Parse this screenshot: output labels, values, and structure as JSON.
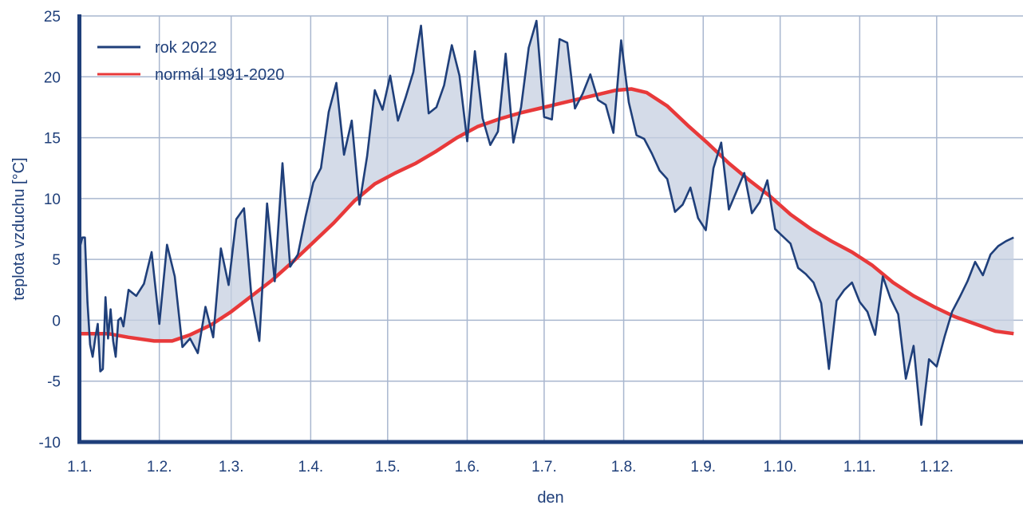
{
  "chart_data": {
    "type": "line",
    "xlabel": "den",
    "ylabel": "teplota vzduchu [°C]",
    "ylim": [
      -10,
      25
    ],
    "yticks": [
      -10,
      -5,
      0,
      5,
      10,
      15,
      20,
      25
    ],
    "x_tick_labels": [
      "1.1.",
      "1.2.",
      "1.3.",
      "1.4.",
      "1.5.",
      "1.6.",
      "1.7.",
      "1.8.",
      "1.9.",
      "1.10.",
      "1.11.",
      "1.12."
    ],
    "x_tick_days": [
      1,
      32,
      60,
      91,
      121,
      152,
      182,
      213,
      244,
      274,
      305,
      335
    ],
    "grid": true,
    "legend_position": "top-left",
    "fill_between": true,
    "series": [
      {
        "name": "rok 2022",
        "color": "#1f3f7a",
        "x": [
          1,
          2,
          3,
          4,
          5,
          6,
          7,
          8,
          9,
          10,
          11,
          12,
          13,
          14,
          15,
          16,
          17,
          18,
          19,
          20,
          23,
          26,
          29,
          32,
          35,
          38,
          41,
          44,
          47,
          50,
          53,
          56,
          59,
          62,
          65,
          68,
          71,
          74,
          77,
          80,
          83,
          86,
          89,
          92,
          95,
          98,
          101,
          104,
          107,
          110,
          113,
          116,
          119,
          122,
          125,
          128,
          131,
          134,
          137,
          140,
          143,
          146,
          149,
          152,
          155,
          158,
          161,
          164,
          167,
          170,
          173,
          176,
          179,
          182,
          185,
          188,
          191,
          194,
          197,
          200,
          203,
          206,
          209,
          212,
          215,
          218,
          221,
          224,
          227,
          230,
          233,
          236,
          239,
          242,
          245,
          248,
          251,
          254,
          257,
          260,
          263,
          266,
          269,
          272,
          275,
          278,
          281,
          284,
          287,
          290,
          293,
          296,
          299,
          302,
          305,
          308,
          311,
          314,
          317,
          320,
          323,
          326,
          329,
          332,
          335,
          338,
          341,
          344,
          347,
          350,
          353,
          356,
          359,
          362,
          365
        ],
        "y": [
          6,
          6.8,
          6.8,
          1.5,
          -2,
          -3,
          -1.5,
          -0.3,
          -4.2,
          -4,
          1.9,
          -1.5,
          0.9,
          -1.7,
          -3,
          0,
          0.2,
          -0.5,
          1,
          2.5,
          2,
          3,
          5.6,
          -0.3,
          6.2,
          3.6,
          -2.2,
          -1.5,
          -2.7,
          1.1,
          -1.4,
          5.9,
          2.9,
          8.3,
          9.2,
          1.7,
          -1.7,
          9.6,
          3.2,
          12.9,
          4.4,
          5.4,
          8.5,
          11.3,
          12.5,
          17.1,
          19.5,
          13.6,
          16.4,
          9.5,
          13.5,
          18.9,
          17.3,
          20.1,
          16.4,
          18.3,
          20.4,
          24.2,
          17,
          17.5,
          19.3,
          22.6,
          20.1,
          14.7,
          22.1,
          16.6,
          14.4,
          15.5,
          21.9,
          14.6,
          17.5,
          22.4,
          24.6,
          16.7,
          16.5,
          23.1,
          22.8,
          17.4,
          18.6,
          20.2,
          18.1,
          17.7,
          15.4,
          23,
          17.9,
          15.2,
          14.9,
          13.7,
          12.3,
          11.6,
          8.9,
          9.5,
          10.9,
          8.4,
          7.4,
          12.5,
          14.6,
          9.1,
          10.6,
          12.1,
          8.8,
          9.7,
          11.5,
          7.5,
          6.9,
          6.3,
          4.3,
          3.8,
          3.1,
          1.4,
          -4,
          1.6,
          2.5,
          3.1,
          1.5,
          0.7,
          -1.2,
          3.6,
          1.8,
          0.5,
          -4.8,
          -2.1,
          -8.6,
          -3.2,
          -3.8,
          -1.4,
          0.7,
          1.9,
          3.2,
          4.8,
          3.7,
          5.4,
          6.1,
          6.5,
          6.8
        ]
      },
      {
        "name": "normál 1991-2020",
        "color": "#e8393a",
        "x": [
          1,
          12,
          20,
          30,
          37,
          44,
          52,
          60,
          68,
          76,
          84,
          92,
          100,
          108,
          116,
          124,
          132,
          140,
          148,
          156,
          164,
          172,
          180,
          190,
          200,
          210,
          216,
          222,
          230,
          238,
          246,
          254,
          262,
          270,
          278,
          286,
          294,
          302,
          310,
          318,
          326,
          334,
          342,
          350,
          358,
          365
        ],
        "y": [
          -1.1,
          -1.1,
          -1.4,
          -1.7,
          -1.7,
          -1.2,
          -0.4,
          0.7,
          2.0,
          3.3,
          4.8,
          6.4,
          8.0,
          9.8,
          11.2,
          12.1,
          12.9,
          13.9,
          15.0,
          15.9,
          16.5,
          17.0,
          17.4,
          17.9,
          18.4,
          18.9,
          19.0,
          18.7,
          17.6,
          16.0,
          14.5,
          12.9,
          11.5,
          10.2,
          8.7,
          7.5,
          6.5,
          5.6,
          4.5,
          3.1,
          2.0,
          1.1,
          0.3,
          -0.3,
          -0.9,
          -1.1
        ]
      }
    ]
  }
}
